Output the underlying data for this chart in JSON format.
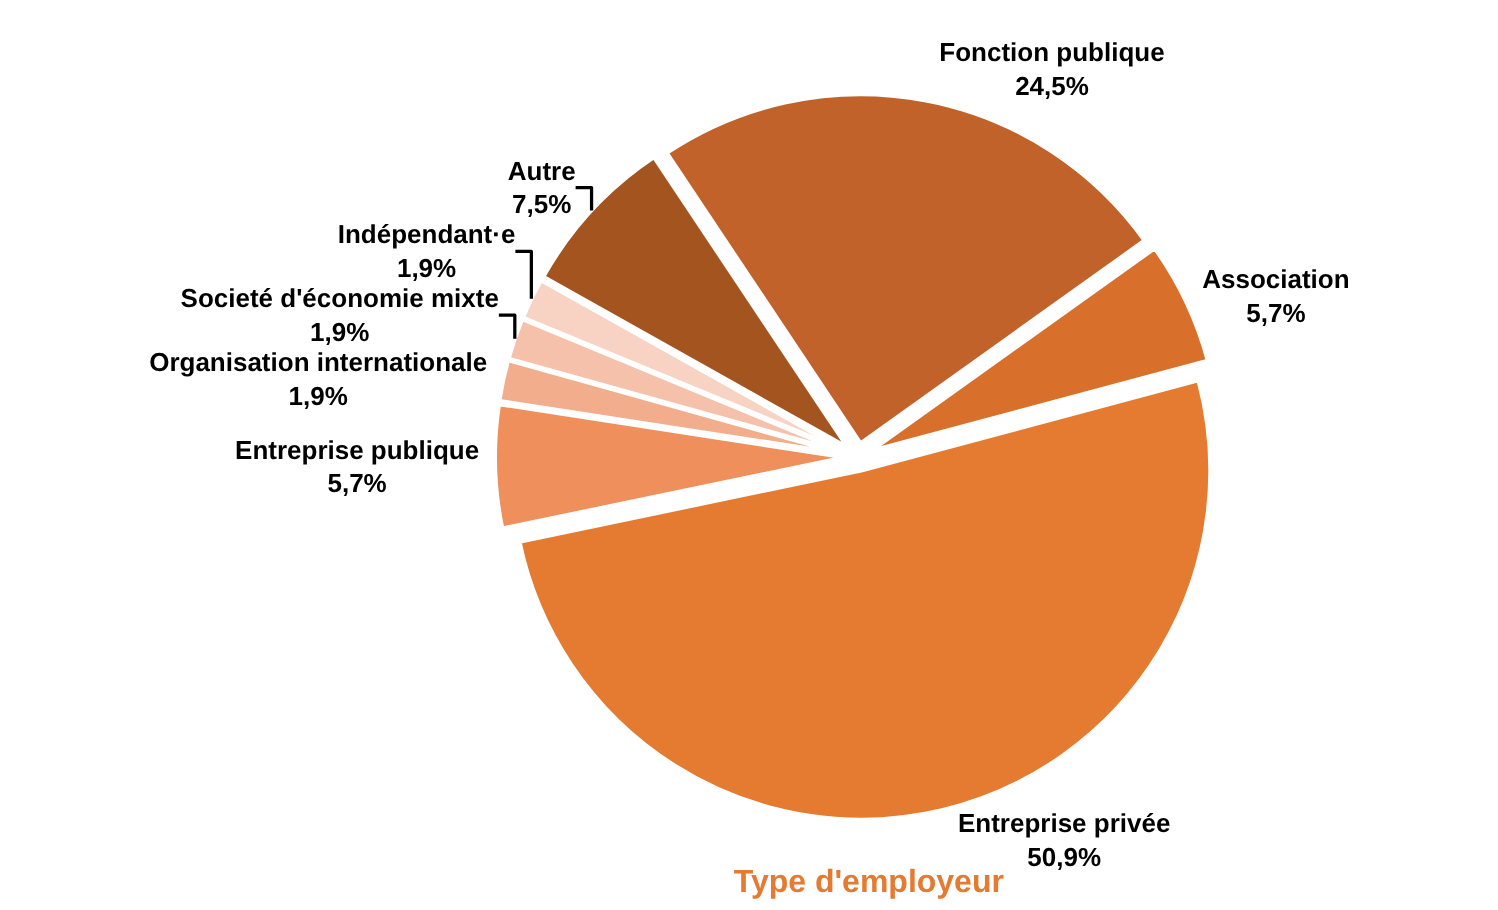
{
  "chart_data": {
    "type": "pie",
    "title": "Type d'employeur",
    "categories": [
      "Entreprise privée",
      "Entreprise publique",
      "Organisation internationale",
      "Societé d'économie mixte",
      "Indépendant·e",
      "Autre",
      "Fonction publique",
      "Association"
    ],
    "values": [
      50.9,
      5.7,
      1.9,
      1.9,
      1.9,
      7.5,
      24.5,
      5.7
    ],
    "value_labels": [
      "50,9%",
      "5,7%",
      "1,9%",
      "1,9%",
      "1,9%",
      "7,5%",
      "24,5%",
      "5,7%"
    ],
    "colors": [
      "#e47b30",
      "#ee8f5c",
      "#f2ad8c",
      "#f5c1aa",
      "#f8d3c4",
      "#a3541f",
      "#c1622a",
      "#d8702c"
    ],
    "legend": false
  }
}
